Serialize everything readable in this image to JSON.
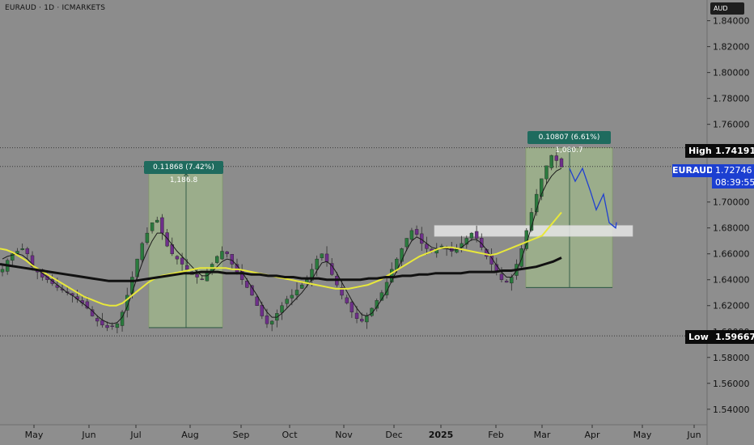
{
  "title": "EURAUD · 1D · ICMARKETS",
  "currency": "AUD",
  "chart_data": {
    "type": "candlestick",
    "symbol": "EURAUD",
    "timeframe": "1D",
    "broker": "ICMARKETS",
    "y_ticks": [
      "1.84000",
      "1.82000",
      "1.80000",
      "1.78000",
      "1.76000",
      "1.74000",
      "1.72000",
      "1.70000",
      "1.68000",
      "1.66000",
      "1.64000",
      "1.62000",
      "1.60000",
      "1.58000",
      "1.56000",
      "1.54000"
    ],
    "ylim": [
      1.528,
      1.856
    ],
    "x_ticks": [
      "May",
      "Jun",
      "Jul",
      "Aug",
      "Sep",
      "Oct",
      "Nov",
      "Dec",
      "2025",
      "Feb",
      "Mar",
      "Apr",
      "May",
      "Jun"
    ],
    "high": {
      "label": "High",
      "value": "1.74191"
    },
    "low": {
      "label": "Low",
      "value": "1.59667"
    },
    "last_price": {
      "symbol": "EURAUD",
      "value": "1.72746",
      "countdown": "08:39:55"
    },
    "price_path": [
      1.648,
      1.655,
      1.66,
      1.662,
      1.664,
      1.66,
      1.65,
      1.646,
      1.642,
      1.64,
      1.637,
      1.634,
      1.632,
      1.63,
      1.628,
      1.625,
      1.622,
      1.618,
      1.612,
      1.608,
      1.605,
      1.603,
      1.604,
      1.606,
      1.615,
      1.628,
      1.642,
      1.656,
      1.668,
      1.676,
      1.684,
      1.686,
      1.676,
      1.666,
      1.66,
      1.656,
      1.652,
      1.648,
      1.644,
      1.642,
      1.64,
      1.646,
      1.652,
      1.658,
      1.662,
      1.66,
      1.652,
      1.646,
      1.64,
      1.634,
      1.628,
      1.62,
      1.612,
      1.606,
      1.608,
      1.614,
      1.62,
      1.625,
      1.628,
      1.632,
      1.636,
      1.64,
      1.648,
      1.656,
      1.66,
      1.654,
      1.644,
      1.636,
      1.628,
      1.622,
      1.615,
      1.61,
      1.608,
      1.612,
      1.618,
      1.624,
      1.63,
      1.638,
      1.648,
      1.656,
      1.664,
      1.672,
      1.678,
      1.675,
      1.668,
      1.664,
      1.662,
      1.664,
      1.666,
      1.664,
      1.662,
      1.664,
      1.668,
      1.672,
      1.676,
      1.672,
      1.665,
      1.658,
      1.652,
      1.646,
      1.64,
      1.638,
      1.642,
      1.652,
      1.664,
      1.678,
      1.692,
      1.706,
      1.718,
      1.728,
      1.736,
      1.732,
      1.727
    ],
    "sma_fast": [
      1.656,
      1.658,
      1.659,
      1.66,
      1.659,
      1.656,
      1.652,
      1.648,
      1.645,
      1.642,
      1.639,
      1.636,
      1.633,
      1.63,
      1.628,
      1.625,
      1.622,
      1.619,
      1.616,
      1.612,
      1.609,
      1.607,
      1.606,
      1.607,
      1.611,
      1.619,
      1.63,
      1.642,
      1.653,
      1.662,
      1.67,
      1.676,
      1.676,
      1.672,
      1.667,
      1.662,
      1.658,
      1.654,
      1.65,
      1.646,
      1.643,
      1.643,
      1.646,
      1.65,
      1.654,
      1.656,
      1.655,
      1.651,
      1.646,
      1.64,
      1.634,
      1.628,
      1.621,
      1.615,
      1.611,
      1.611,
      1.614,
      1.618,
      1.622,
      1.626,
      1.63,
      1.635,
      1.64,
      1.647,
      1.653,
      1.654,
      1.651,
      1.645,
      1.638,
      1.631,
      1.624,
      1.618,
      1.613,
      1.612,
      1.614,
      1.619,
      1.625,
      1.631,
      1.639,
      1.647,
      1.655,
      1.663,
      1.67,
      1.673,
      1.671,
      1.668,
      1.665,
      1.664,
      1.664,
      1.664,
      1.663,
      1.663,
      1.665,
      1.668,
      1.671,
      1.671,
      1.668,
      1.663,
      1.657,
      1.651,
      1.646,
      1.642,
      1.642,
      1.647,
      1.656,
      1.668,
      1.681,
      1.694,
      1.706,
      1.714,
      1.72,
      1.724,
      1.726
    ],
    "sma_mid": [
      1.664,
      1.663,
      1.661,
      1.658,
      1.655,
      1.651,
      1.648,
      1.645,
      1.642,
      1.639,
      1.636,
      1.633,
      1.63,
      1.627,
      1.625,
      1.623,
      1.621,
      1.62,
      1.62,
      1.622,
      1.626,
      1.63,
      1.634,
      1.638,
      1.641,
      1.643,
      1.644,
      1.645,
      1.646,
      1.647,
      1.648,
      1.649,
      1.649,
      1.649,
      1.649,
      1.649,
      1.648,
      1.648,
      1.647,
      1.646,
      1.645,
      1.644,
      1.643,
      1.642,
      1.641,
      1.64,
      1.639,
      1.638,
      1.637,
      1.636,
      1.635,
      1.634,
      1.633,
      1.633,
      1.633,
      1.634,
      1.635,
      1.636,
      1.638,
      1.64,
      1.643,
      1.646,
      1.649,
      1.652,
      1.655,
      1.658,
      1.66,
      1.662,
      1.664,
      1.665,
      1.665,
      1.664,
      1.663,
      1.662,
      1.661,
      1.66,
      1.659,
      1.66,
      1.662,
      1.664,
      1.666,
      1.668,
      1.67,
      1.672,
      1.674,
      1.68,
      1.686,
      1.692
    ],
    "sma_slow": [
      1.652,
      1.651,
      1.65,
      1.649,
      1.648,
      1.647,
      1.646,
      1.645,
      1.644,
      1.643,
      1.642,
      1.641,
      1.64,
      1.639,
      1.639,
      1.639,
      1.639,
      1.64,
      1.641,
      1.642,
      1.643,
      1.644,
      1.645,
      1.645,
      1.646,
      1.646,
      1.646,
      1.645,
      1.645,
      1.645,
      1.644,
      1.644,
      1.643,
      1.643,
      1.642,
      1.642,
      1.641,
      1.641,
      1.641,
      1.64,
      1.64,
      1.64,
      1.64,
      1.64,
      1.641,
      1.641,
      1.642,
      1.642,
      1.643,
      1.643,
      1.644,
      1.644,
      1.645,
      1.645,
      1.645,
      1.645,
      1.646,
      1.646,
      1.646,
      1.646,
      1.647,
      1.647,
      1.648,
      1.649,
      1.65,
      1.652,
      1.654,
      1.657
    ],
    "projection": [
      1.726,
      1.716,
      1.726,
      1.708,
      1.694,
      1.706,
      1.684,
      1.68
    ],
    "measurements": [
      {
        "label": "0.11868 (7.42%) 1,186.8",
        "from": 1.603,
        "to": 1.722
      },
      {
        "label": "0.10807 (6.61%) 1,080.7",
        "from": 1.634,
        "to": 1.742
      }
    ],
    "resistance_zone": [
      1.676,
      1.68
    ]
  }
}
